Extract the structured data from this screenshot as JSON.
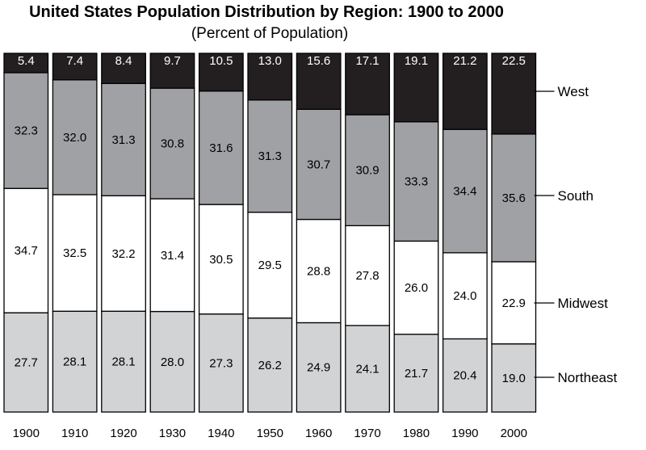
{
  "chart_data": {
    "type": "bar",
    "stacked": true,
    "title": "United States Population Distribution by Region: 1900 to 2000",
    "subtitle": "(Percent of Population)",
    "categories": [
      "1900",
      "1910",
      "1920",
      "1930",
      "1940",
      "1950",
      "1960",
      "1970",
      "1980",
      "1990",
      "2000"
    ],
    "series": [
      {
        "name": "Northeast",
        "color": "#d2d3d5",
        "text_color": "#000000",
        "values": [
          27.7,
          28.1,
          28.1,
          28.0,
          27.3,
          26.2,
          24.9,
          24.1,
          21.7,
          20.4,
          19.0
        ]
      },
      {
        "name": "Midwest",
        "color": "#ffffff",
        "text_color": "#000000",
        "values": [
          34.7,
          32.5,
          32.2,
          31.4,
          30.5,
          29.5,
          28.8,
          27.8,
          26.0,
          24.0,
          22.9
        ]
      },
      {
        "name": "South",
        "color": "#a0a1a4",
        "text_color": "#000000",
        "values": [
          32.3,
          32.0,
          31.3,
          30.8,
          31.6,
          31.3,
          30.7,
          30.9,
          33.3,
          34.4,
          35.6
        ]
      },
      {
        "name": "West",
        "color": "#231f20",
        "text_color": "#ffffff",
        "values": [
          5.4,
          7.4,
          8.4,
          9.7,
          10.5,
          13.0,
          15.6,
          17.1,
          19.1,
          21.2,
          22.5
        ]
      }
    ],
    "legend_placement": "right",
    "ylim": [
      0,
      100
    ],
    "grid": false
  }
}
